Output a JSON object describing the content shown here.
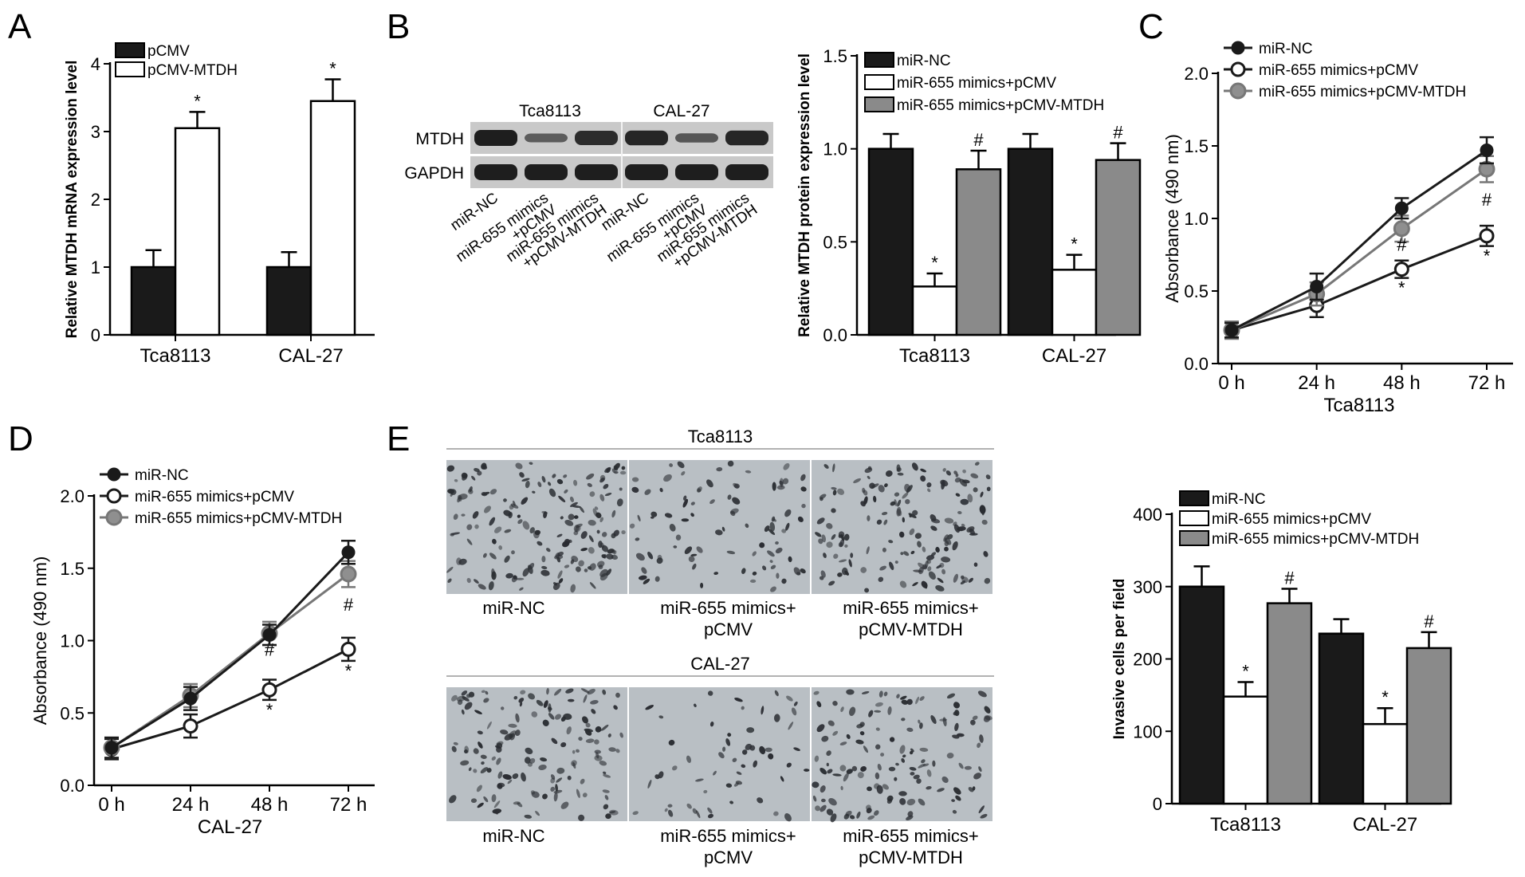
{
  "panels": {
    "a": "A",
    "b": "B",
    "c": "C",
    "d": "D",
    "e": "E"
  },
  "colors": {
    "black": "#1a1a1a",
    "white": "#ffffff",
    "gray": "#777777",
    "bar_gray": "#8a8a8a",
    "blot_bg": "#c9c9c9",
    "band": "#1e1e1e",
    "cells_bg": "#b9bfc4",
    "cells_dark": "#2a2d32"
  },
  "western": {
    "groups": [
      "Tca8113",
      "CAL-27"
    ],
    "rows": [
      "MTDH",
      "GAPDH"
    ],
    "lanes": [
      "miR-NC",
      "miR-655 mimics\n+pCMV",
      "miR-655 mimics\n+pCMV-MTDH",
      "miR-NC",
      "miR-655 mimics\n+pCMV",
      "miR-655 mimics\n+pCMV-MTDH"
    ],
    "mtdh_band_strength": [
      1.0,
      0.35,
      0.85,
      0.9,
      0.4,
      0.9
    ]
  },
  "invasion_images": {
    "rows": [
      {
        "title": "Tca8113",
        "density": [
          0.55,
          0.28,
          0.5
        ]
      },
      {
        "title": "CAL-27",
        "density": [
          0.45,
          0.18,
          0.42
        ]
      }
    ],
    "captions": [
      "miR-NC",
      "miR-655 mimics+\npCMV",
      "miR-655 mimics+\npCMV-MTDH"
    ]
  },
  "chart_data": [
    {
      "id": "A",
      "type": "bar",
      "categories": [
        "Tca8113",
        "CAL-27"
      ],
      "series": [
        {
          "name": "pCMV",
          "values": [
            1.0,
            1.0
          ],
          "errors": [
            0.25,
            0.22
          ],
          "marks": [
            "",
            ""
          ],
          "color": "black"
        },
        {
          "name": "pCMV-MTDH",
          "values": [
            3.05,
            3.45
          ],
          "errors": [
            0.24,
            0.32
          ],
          "marks": [
            "*",
            "*"
          ],
          "color": "white"
        }
      ],
      "ylabel": "Relative MTDH mRNA expression level",
      "ylim": [
        0,
        4
      ],
      "yticks": [
        "0",
        "1",
        "2",
        "3",
        "4"
      ],
      "ytick_values": [
        0,
        1,
        2,
        3,
        4
      ],
      "legend": "top-left"
    },
    {
      "id": "B",
      "type": "bar",
      "categories": [
        "Tca8113",
        "CAL-27"
      ],
      "series": [
        {
          "name": "miR-NC",
          "values": [
            1.0,
            1.0
          ],
          "errors": [
            0.08,
            0.08
          ],
          "marks": [
            "",
            ""
          ],
          "color": "black"
        },
        {
          "name": "miR-655 mimics+pCMV",
          "values": [
            0.26,
            0.35
          ],
          "errors": [
            0.07,
            0.08
          ],
          "marks": [
            "*",
            "*"
          ],
          "color": "white"
        },
        {
          "name": "miR-655 mimics+pCMV-MTDH",
          "values": [
            0.89,
            0.94
          ],
          "errors": [
            0.1,
            0.09
          ],
          "marks": [
            "#",
            "#"
          ],
          "color": "bar_gray"
        }
      ],
      "ylabel": "Relative MTDH protein expression level",
      "ylim": [
        0,
        1.5
      ],
      "yticks": [
        "0.0",
        "0.5",
        "1.0",
        "1.5"
      ],
      "ytick_values": [
        0,
        0.5,
        1.0,
        1.5
      ],
      "legend": "top"
    },
    {
      "id": "C",
      "type": "line",
      "x": [
        "0 h",
        "24 h",
        "48 h",
        "72 h"
      ],
      "series": [
        {
          "name": "miR-NC",
          "values": [
            0.23,
            0.53,
            1.07,
            1.47
          ],
          "errors": [
            0.05,
            0.09,
            0.07,
            0.09
          ],
          "marks": [
            "",
            "",
            "",
            ""
          ],
          "style": "black-filled"
        },
        {
          "name": "miR-655 mimics+pCMV",
          "values": [
            0.23,
            0.4,
            0.65,
            0.88
          ],
          "errors": [
            0.05,
            0.08,
            0.06,
            0.07
          ],
          "marks": [
            "",
            "",
            "*",
            "*"
          ],
          "style": "open"
        },
        {
          "name": "miR-655 mimics+pCMV-MTDH",
          "values": [
            0.23,
            0.48,
            0.93,
            1.34
          ],
          "errors": [
            0.06,
            0.08,
            0.09,
            0.09
          ],
          "marks": [
            "",
            "",
            "#",
            "#"
          ],
          "style": "gray-filled"
        }
      ],
      "xlabel": "Tca8113",
      "ylabel": "Absorbance (490 nm)",
      "ylim": [
        0,
        2.0
      ],
      "yticks": [
        "0.0",
        "0.5",
        "1.0",
        "1.5",
        "2.0"
      ],
      "ytick_values": [
        0,
        0.5,
        1.0,
        1.5,
        2.0
      ],
      "legend": "top-left"
    },
    {
      "id": "D",
      "type": "line",
      "x": [
        "0 h",
        "24 h",
        "48 h",
        "72 h"
      ],
      "series": [
        {
          "name": "miR-NC",
          "values": [
            0.26,
            0.6,
            1.04,
            1.61
          ],
          "errors": [
            0.07,
            0.08,
            0.07,
            0.08
          ],
          "marks": [
            "",
            "",
            "",
            ""
          ],
          "style": "black-filled"
        },
        {
          "name": "miR-655 mimics+pCMV",
          "values": [
            0.25,
            0.41,
            0.66,
            0.94
          ],
          "errors": [
            0.07,
            0.08,
            0.07,
            0.08
          ],
          "marks": [
            "",
            "",
            "*",
            "*"
          ],
          "style": "open"
        },
        {
          "name": "miR-655 mimics+pCMV-MTDH",
          "values": [
            0.26,
            0.62,
            1.05,
            1.46
          ],
          "errors": [
            0.07,
            0.08,
            0.08,
            0.09
          ],
          "marks": [
            "",
            "",
            "#",
            "#"
          ],
          "style": "gray-filled"
        }
      ],
      "xlabel": "CAL-27",
      "ylabel": "Absorbance (490 nm)",
      "ylim": [
        0,
        2.0
      ],
      "yticks": [
        "0.0",
        "0.5",
        "1.0",
        "1.5",
        "2.0"
      ],
      "ytick_values": [
        0,
        0.5,
        1.0,
        1.5,
        2.0
      ],
      "legend": "top-left"
    },
    {
      "id": "E",
      "type": "bar",
      "categories": [
        "Tca8113",
        "CAL-27"
      ],
      "series": [
        {
          "name": "miR-NC",
          "values": [
            300,
            235
          ],
          "errors": [
            28,
            20
          ],
          "marks": [
            "",
            ""
          ],
          "color": "black"
        },
        {
          "name": "miR-655 mimics+pCMV",
          "values": [
            148,
            110
          ],
          "errors": [
            20,
            22
          ],
          "marks": [
            "*",
            "*"
          ],
          "color": "white"
        },
        {
          "name": "miR-655 mimics+pCMV-MTDH",
          "values": [
            277,
            215
          ],
          "errors": [
            20,
            22
          ],
          "marks": [
            "#",
            "#"
          ],
          "color": "bar_gray"
        }
      ],
      "ylabel": "Invasive cells per field",
      "ylim": [
        0,
        400
      ],
      "yticks": [
        "0",
        "100",
        "200",
        "300",
        "400"
      ],
      "ytick_values": [
        0,
        100,
        200,
        300,
        400
      ],
      "legend": "top"
    }
  ]
}
